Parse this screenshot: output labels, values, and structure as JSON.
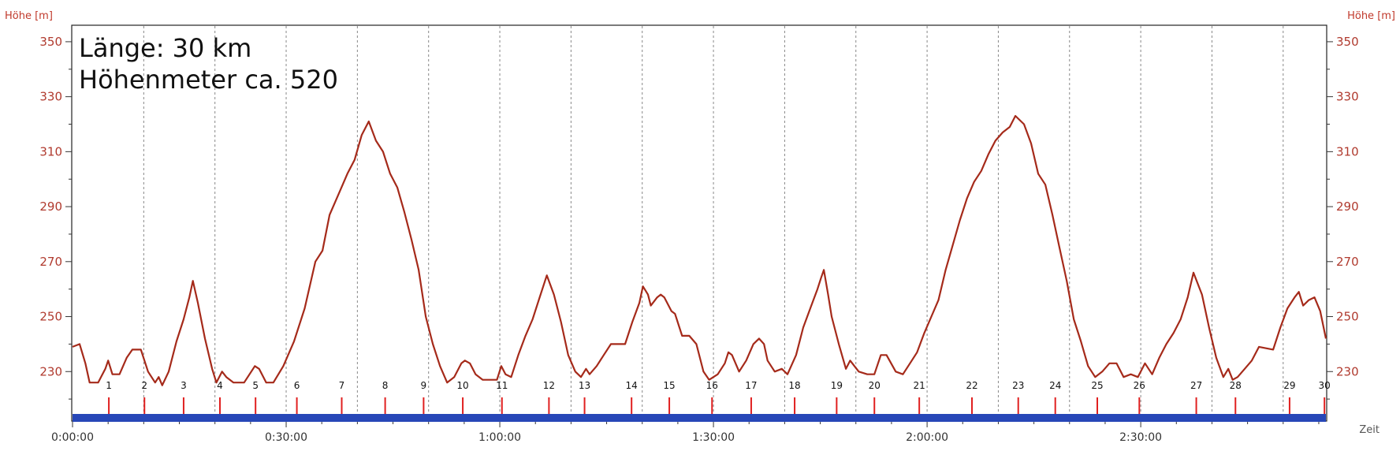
{
  "chart_data": {
    "type": "line",
    "annotation_lines": [
      "Länge: 30 km",
      "Höhenmeter ca. 520"
    ],
    "ylabel": "Höhe [m]",
    "xlabel": "Zeit",
    "ylim": [
      212,
      356
    ],
    "yticks": [
      230,
      250,
      270,
      290,
      310,
      330,
      350
    ],
    "x_unit": "minutes",
    "xlim": [
      0,
      176
    ],
    "xtick_minutes": [
      0,
      30,
      60,
      90,
      120,
      150
    ],
    "xtick_labels": [
      "0:00:00",
      "0:30:00",
      "1:00:00",
      "1:30:00",
      "2:00:00",
      "2:30:00"
    ],
    "grid": "vertical dashed lines every 10 minutes",
    "km_markers": [
      {
        "label": "1",
        "t": 5.1
      },
      {
        "label": "2",
        "t": 10.1
      },
      {
        "label": "3",
        "t": 15.6
      },
      {
        "label": "4",
        "t": 20.7
      },
      {
        "label": "5",
        "t": 25.7
      },
      {
        "label": "6",
        "t": 31.5
      },
      {
        "label": "7",
        "t": 37.8
      },
      {
        "label": "8",
        "t": 43.9
      },
      {
        "label": "9",
        "t": 49.3
      },
      {
        "label": "10",
        "t": 54.8
      },
      {
        "label": "11",
        "t": 60.3
      },
      {
        "label": "12",
        "t": 66.9
      },
      {
        "label": "13",
        "t": 71.9
      },
      {
        "label": "14",
        "t": 78.5
      },
      {
        "label": "15",
        "t": 83.8
      },
      {
        "label": "16",
        "t": 89.8
      },
      {
        "label": "17",
        "t": 95.3
      },
      {
        "label": "18",
        "t": 101.4
      },
      {
        "label": "19",
        "t": 107.3
      },
      {
        "label": "20",
        "t": 112.6
      },
      {
        "label": "21",
        "t": 118.9
      },
      {
        "label": "22",
        "t": 126.3
      },
      {
        "label": "23",
        "t": 132.8
      },
      {
        "label": "24",
        "t": 138.0
      },
      {
        "label": "25",
        "t": 143.9
      },
      {
        "label": "26",
        "t": 149.8
      },
      {
        "label": "27",
        "t": 157.8
      },
      {
        "label": "28",
        "t": 163.3
      },
      {
        "label": "29",
        "t": 170.9
      },
      {
        "label": "30",
        "t": 175.8
      }
    ],
    "series": [
      {
        "color": "#a52a1a",
        "points": [
          [
            0,
            239
          ],
          [
            1,
            240
          ],
          [
            1.8,
            233
          ],
          [
            2.4,
            226
          ],
          [
            3.6,
            226
          ],
          [
            4.6,
            231
          ],
          [
            5.0,
            234
          ],
          [
            5.6,
            229
          ],
          [
            6.6,
            229
          ],
          [
            7.6,
            235
          ],
          [
            8.4,
            238
          ],
          [
            9.6,
            238
          ],
          [
            10.6,
            230
          ],
          [
            11.6,
            226
          ],
          [
            12.1,
            228
          ],
          [
            12.6,
            225
          ],
          [
            13.5,
            230
          ],
          [
            14.6,
            241
          ],
          [
            15.6,
            249
          ],
          [
            16.4,
            257
          ],
          [
            16.9,
            263
          ],
          [
            17.6,
            255
          ],
          [
            18.6,
            242
          ],
          [
            19.6,
            231
          ],
          [
            20.2,
            226
          ],
          [
            21.0,
            230
          ],
          [
            21.6,
            228
          ],
          [
            22.6,
            226
          ],
          [
            24.1,
            226
          ],
          [
            25.6,
            232
          ],
          [
            26.2,
            231
          ],
          [
            27.2,
            226
          ],
          [
            28.2,
            226
          ],
          [
            29.6,
            232
          ],
          [
            31.1,
            241
          ],
          [
            32.6,
            253
          ],
          [
            34.1,
            270
          ],
          [
            35.1,
            274
          ],
          [
            36.1,
            287
          ],
          [
            37.6,
            296
          ],
          [
            38.6,
            302
          ],
          [
            39.6,
            307
          ],
          [
            40.6,
            316
          ],
          [
            41.6,
            321
          ],
          [
            42.6,
            314
          ],
          [
            43.6,
            310
          ],
          [
            44.6,
            302
          ],
          [
            45.6,
            297
          ],
          [
            46.6,
            288
          ],
          [
            47.6,
            278
          ],
          [
            48.6,
            267
          ],
          [
            49.6,
            250
          ],
          [
            50.6,
            240
          ],
          [
            51.6,
            232
          ],
          [
            52.6,
            226
          ],
          [
            53.6,
            228
          ],
          [
            54.6,
            233
          ],
          [
            55.1,
            234
          ],
          [
            55.8,
            233
          ],
          [
            56.6,
            229
          ],
          [
            57.6,
            227
          ],
          [
            59.6,
            227
          ],
          [
            60.2,
            232
          ],
          [
            60.8,
            229
          ],
          [
            61.6,
            228
          ],
          [
            62.6,
            236
          ],
          [
            63.6,
            243
          ],
          [
            64.6,
            249
          ],
          [
            65.6,
            257
          ],
          [
            66.6,
            265
          ],
          [
            67.6,
            258
          ],
          [
            68.6,
            248
          ],
          [
            69.6,
            236
          ],
          [
            70.6,
            230
          ],
          [
            71.4,
            228
          ],
          [
            72.1,
            231
          ],
          [
            72.6,
            229
          ],
          [
            73.6,
            232
          ],
          [
            74.6,
            236
          ],
          [
            75.6,
            240
          ],
          [
            77.6,
            240
          ],
          [
            78.6,
            248
          ],
          [
            79.6,
            255
          ],
          [
            80.1,
            261
          ],
          [
            80.8,
            258
          ],
          [
            81.2,
            254
          ],
          [
            82.1,
            257
          ],
          [
            82.6,
            258
          ],
          [
            83.1,
            257
          ],
          [
            84.1,
            252
          ],
          [
            84.6,
            251
          ],
          [
            85.6,
            243
          ],
          [
            86.6,
            243
          ],
          [
            87.6,
            240
          ],
          [
            88.6,
            230
          ],
          [
            89.4,
            227
          ],
          [
            90.6,
            229
          ],
          [
            91.6,
            233
          ],
          [
            92.1,
            237
          ],
          [
            92.6,
            236
          ],
          [
            93.6,
            230
          ],
          [
            94.6,
            234
          ],
          [
            95.6,
            240
          ],
          [
            96.4,
            242
          ],
          [
            97.1,
            240
          ],
          [
            97.6,
            234
          ],
          [
            98.6,
            230
          ],
          [
            99.6,
            231
          ],
          [
            100.4,
            229
          ],
          [
            101.6,
            236
          ],
          [
            102.6,
            246
          ],
          [
            103.6,
            253
          ],
          [
            104.6,
            260
          ],
          [
            105.1,
            264
          ],
          [
            105.5,
            267
          ],
          [
            106.1,
            258
          ],
          [
            106.6,
            250
          ],
          [
            107.6,
            240
          ],
          [
            108.6,
            231
          ],
          [
            109.2,
            234
          ],
          [
            109.8,
            232
          ],
          [
            110.4,
            230
          ],
          [
            111.6,
            229
          ],
          [
            112.6,
            229
          ],
          [
            113.5,
            236
          ],
          [
            114.3,
            236
          ],
          [
            115.6,
            230
          ],
          [
            116.6,
            229
          ],
          [
            117.6,
            233
          ],
          [
            118.6,
            237
          ],
          [
            119.6,
            244
          ],
          [
            120.6,
            250
          ],
          [
            121.6,
            256
          ],
          [
            122.6,
            267
          ],
          [
            123.6,
            276
          ],
          [
            124.6,
            285
          ],
          [
            125.6,
            293
          ],
          [
            126.6,
            299
          ],
          [
            127.6,
            303
          ],
          [
            128.6,
            309
          ],
          [
            129.6,
            314
          ],
          [
            130.6,
            317
          ],
          [
            131.6,
            319
          ],
          [
            132.4,
            323
          ],
          [
            133.6,
            320
          ],
          [
            134.6,
            313
          ],
          [
            135.6,
            302
          ],
          [
            136.6,
            298
          ],
          [
            137.6,
            287
          ],
          [
            138.6,
            275
          ],
          [
            139.6,
            263
          ],
          [
            140.6,
            249
          ],
          [
            141.6,
            241
          ],
          [
            142.6,
            232
          ],
          [
            143.6,
            228
          ],
          [
            144.6,
            230
          ],
          [
            145.6,
            233
          ],
          [
            146.6,
            233
          ],
          [
            147.6,
            228
          ],
          [
            148.6,
            229
          ],
          [
            149.6,
            228
          ],
          [
            150.6,
            233
          ],
          [
            151.6,
            229
          ],
          [
            152.6,
            235
          ],
          [
            153.6,
            240
          ],
          [
            154.6,
            244
          ],
          [
            155.6,
            249
          ],
          [
            156.6,
            257
          ],
          [
            157.4,
            266
          ],
          [
            158.6,
            258
          ],
          [
            159.6,
            246
          ],
          [
            160.6,
            235
          ],
          [
            161.6,
            228
          ],
          [
            162.3,
            231
          ],
          [
            162.9,
            227
          ],
          [
            163.6,
            228
          ],
          [
            164.6,
            231
          ],
          [
            165.6,
            234
          ],
          [
            166.6,
            239
          ],
          [
            168.6,
            238
          ],
          [
            169.6,
            246
          ],
          [
            170.6,
            253
          ],
          [
            171.6,
            257
          ],
          [
            172.2,
            259
          ],
          [
            172.8,
            254
          ],
          [
            173.6,
            256
          ],
          [
            174.4,
            257
          ],
          [
            175.2,
            252
          ],
          [
            176,
            242
          ]
        ]
      }
    ]
  }
}
